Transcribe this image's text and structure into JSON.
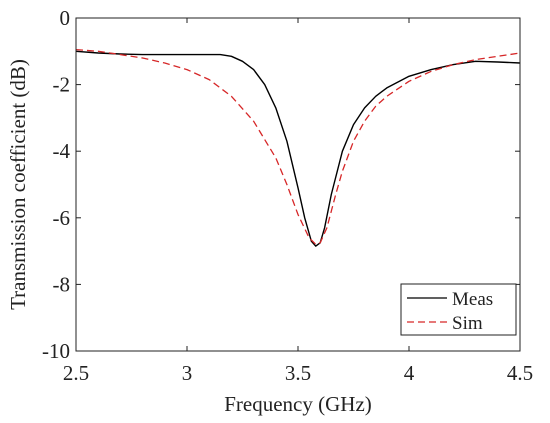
{
  "chart_data": {
    "type": "line",
    "title": "",
    "xlabel": "Frequency (GHz)",
    "ylabel": "Transmission coefficient (dB)",
    "xlim": [
      2.5,
      4.5
    ],
    "ylim": [
      -10,
      0
    ],
    "xticks": [
      "2.5",
      "3",
      "3.5",
      "4",
      "4.5"
    ],
    "yticks": [
      "0",
      "-2",
      "-4",
      "-6",
      "-8",
      "-10"
    ],
    "grid": false,
    "legend_position": "bottom-right",
    "series": [
      {
        "name": "Meas",
        "color": "#000000",
        "style": "solid",
        "x": [
          2.5,
          2.6,
          2.7,
          2.8,
          2.9,
          3.0,
          3.1,
          3.15,
          3.2,
          3.25,
          3.3,
          3.35,
          3.4,
          3.45,
          3.5,
          3.53,
          3.56,
          3.58,
          3.6,
          3.62,
          3.65,
          3.7,
          3.75,
          3.8,
          3.85,
          3.9,
          4.0,
          4.1,
          4.2,
          4.3,
          4.4,
          4.5
        ],
        "y": [
          -1.0,
          -1.05,
          -1.08,
          -1.1,
          -1.1,
          -1.1,
          -1.1,
          -1.1,
          -1.15,
          -1.3,
          -1.55,
          -2.0,
          -2.7,
          -3.7,
          -5.1,
          -6.0,
          -6.7,
          -6.85,
          -6.75,
          -6.3,
          -5.3,
          -4.0,
          -3.2,
          -2.7,
          -2.35,
          -2.1,
          -1.75,
          -1.55,
          -1.4,
          -1.3,
          -1.32,
          -1.35
        ]
      },
      {
        "name": "Sim",
        "color": "#d62728",
        "style": "dashed",
        "x": [
          2.5,
          2.6,
          2.7,
          2.8,
          2.9,
          3.0,
          3.1,
          3.2,
          3.3,
          3.4,
          3.45,
          3.5,
          3.55,
          3.58,
          3.6,
          3.63,
          3.67,
          3.7,
          3.75,
          3.8,
          3.85,
          3.9,
          4.0,
          4.1,
          4.2,
          4.3,
          4.4,
          4.5
        ],
        "y": [
          -0.95,
          -1.0,
          -1.1,
          -1.2,
          -1.35,
          -1.55,
          -1.85,
          -2.35,
          -3.1,
          -4.2,
          -5.0,
          -5.9,
          -6.6,
          -6.8,
          -6.75,
          -6.3,
          -5.3,
          -4.6,
          -3.7,
          -3.1,
          -2.65,
          -2.35,
          -1.9,
          -1.6,
          -1.4,
          -1.25,
          -1.15,
          -1.05
        ]
      }
    ]
  }
}
